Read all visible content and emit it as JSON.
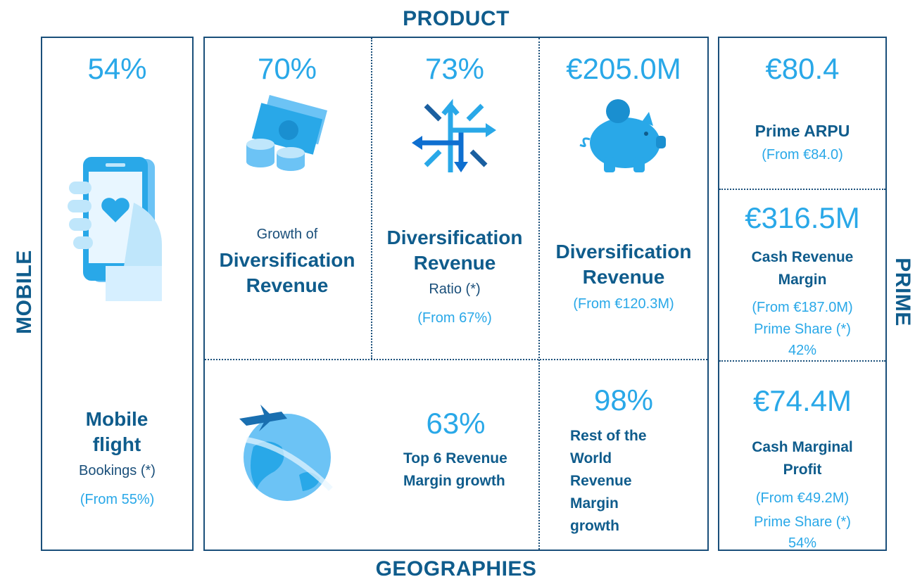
{
  "labels": {
    "top": "PRODUCT",
    "bottom": "GEOGRAPHIES",
    "left": "MOBILE",
    "right": "PRIME"
  },
  "cells": {
    "mobile": {
      "value": "54%",
      "title": "Mobile flight",
      "subtitle": "Bookings (*)",
      "note": "(From 55%)"
    },
    "growth": {
      "value": "70%",
      "pretitle": "Growth of",
      "title": "Diversification Revenue"
    },
    "ratio": {
      "value": "73%",
      "title": "Diversification Revenue",
      "subtitle": "Ratio (*)",
      "note": "(From 67%)"
    },
    "revenue": {
      "value": "€205.0M",
      "title": "Diversification Revenue",
      "note": "(From €120.3M)"
    },
    "top6": {
      "value": "63%",
      "title": "Top 6 Revenue Margin growth"
    },
    "rest": {
      "value": "98%",
      "title": "Rest of the World Revenue Margin growth"
    },
    "arpu": {
      "value": "€80.4",
      "title": "Prime ARPU",
      "note": "(From €84.0)"
    },
    "cash_revenue": {
      "value": "€316.5M",
      "title": "Cash Revenue Margin",
      "note": "(From €187.0M)",
      "share_label": "Prime Share (*)",
      "share": "42%"
    },
    "cash_profit": {
      "value": "€74.4M",
      "title": "Cash Marginal Profit",
      "note": "(From €49.2M)",
      "share_label": "Prime Share (*)",
      "share": "54%"
    }
  }
}
